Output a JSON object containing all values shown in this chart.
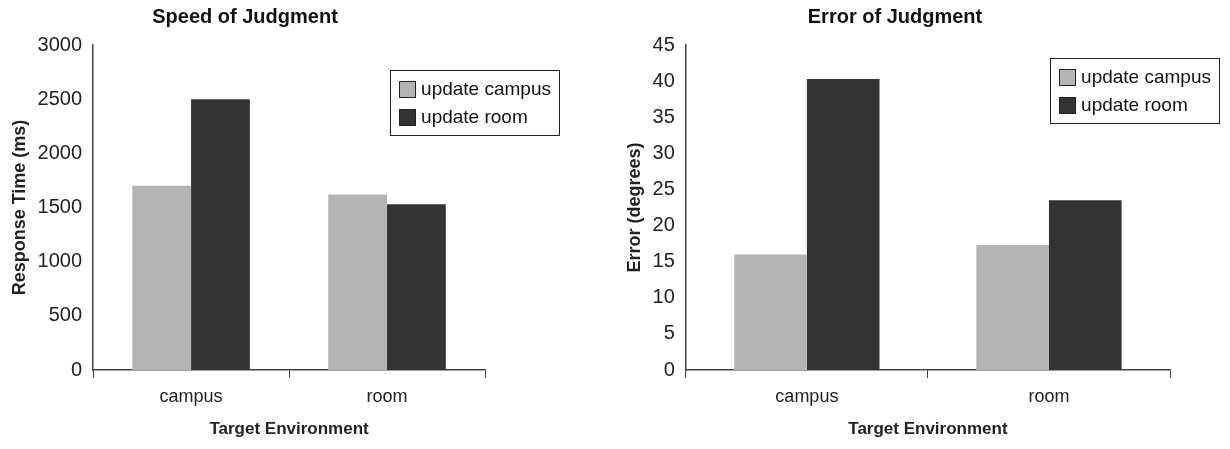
{
  "chart_data": [
    {
      "type": "bar",
      "title": "Speed of Judgment",
      "xlabel": "Target Environment",
      "ylabel": "Response Time (ms)",
      "categories": [
        "campus",
        "room"
      ],
      "series": [
        {
          "name": "update campus",
          "color": "#b4b4b4",
          "values": [
            1700,
            1620
          ]
        },
        {
          "name": "update room",
          "color": "#333333",
          "values": [
            2500,
            1530
          ]
        }
      ],
      "ylim": [
        0,
        3000
      ],
      "yticks": [
        0,
        500,
        1000,
        1500,
        2000,
        2500,
        3000
      ],
      "legend": "top right"
    },
    {
      "type": "bar",
      "title": "Error of Judgment",
      "xlabel": "Target Environment",
      "ylabel": "Error (degrees)",
      "categories": [
        "campus",
        "room"
      ],
      "series": [
        {
          "name": "update campus",
          "color": "#b4b4b4",
          "values": [
            16,
            17.3
          ]
        },
        {
          "name": "update room",
          "color": "#333333",
          "values": [
            40.3,
            23.5
          ]
        }
      ],
      "ylim": [
        0,
        45
      ],
      "yticks": [
        0,
        5,
        10,
        15,
        20,
        25,
        30,
        35,
        40,
        45
      ],
      "legend": "top right"
    }
  ]
}
